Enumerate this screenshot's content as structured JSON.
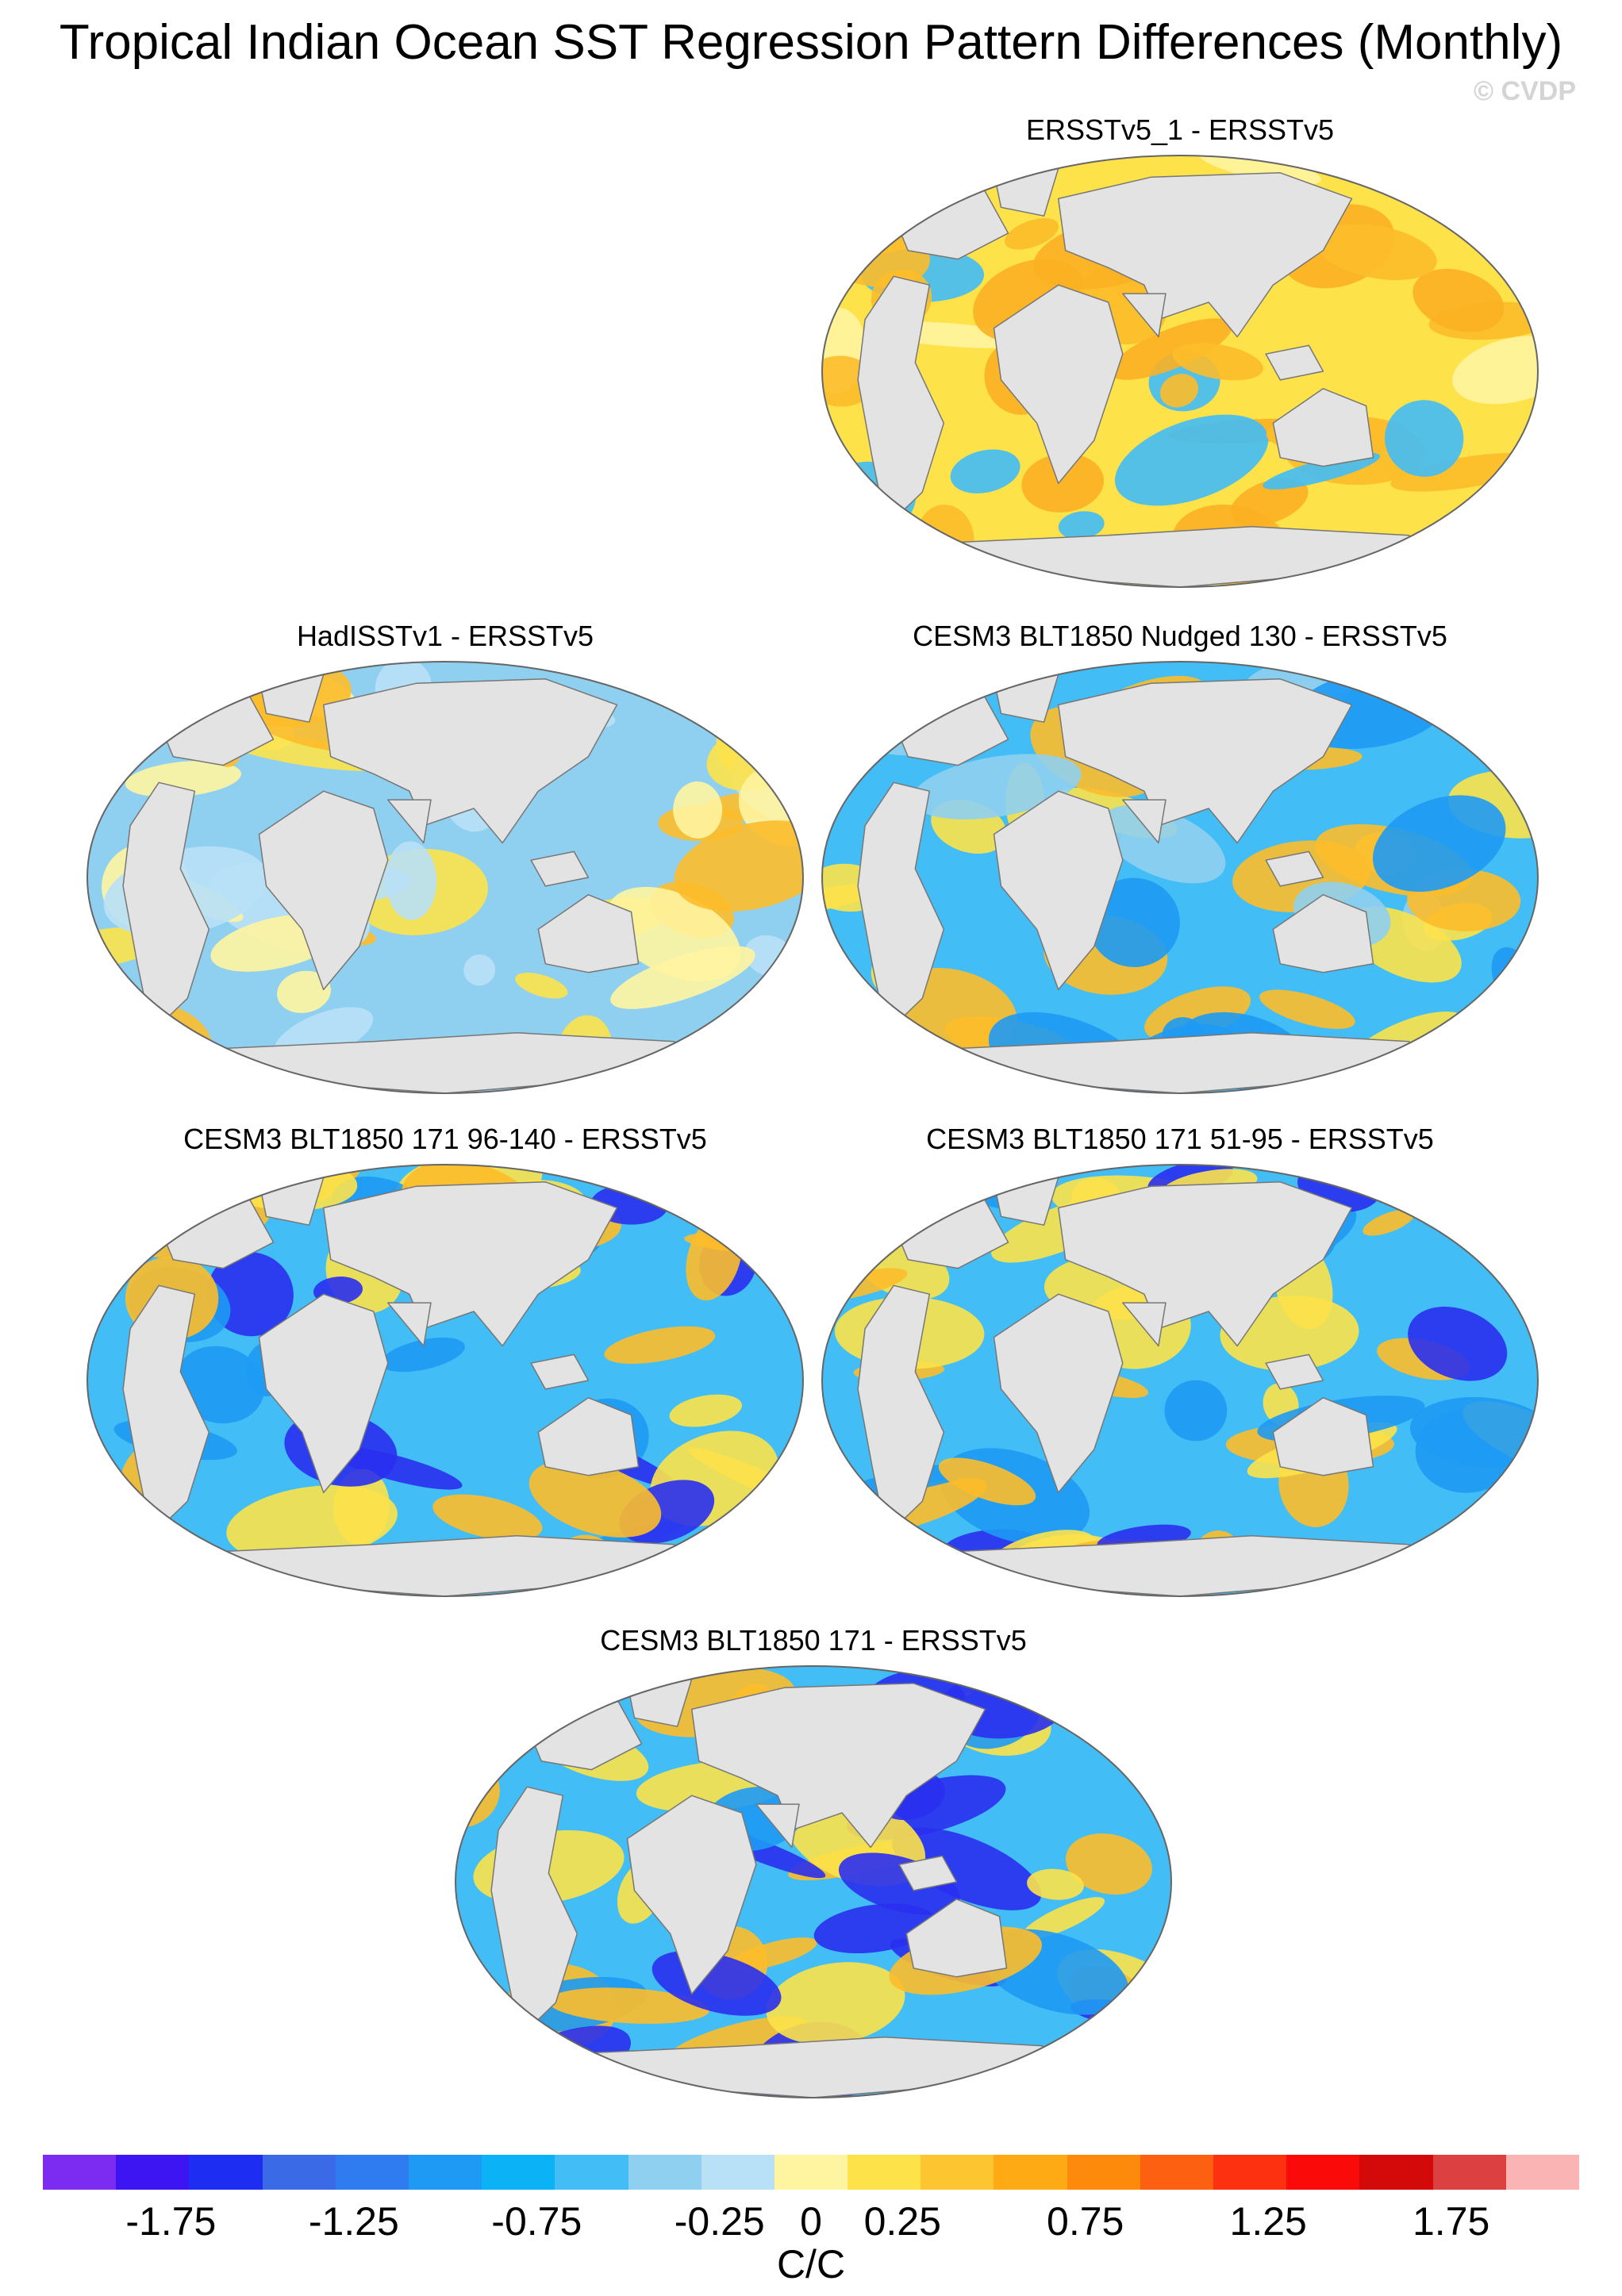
{
  "title": "Tropical Indian Ocean SST Regression Pattern Differences (Monthly)",
  "copyright": "© CVDP",
  "panels": [
    {
      "title": "ERSSTv5_1 - ERSSTv5",
      "palette": [
        "#fde24a",
        "#fdbc2a",
        "#fff4a0",
        "#42bdf6",
        "#fbb022"
      ]
    },
    {
      "title": "HadISSTv1 - ERSSTv5",
      "palette": [
        "#8fcff0",
        "#fde24a",
        "#fff4a0",
        "#fdbc2a",
        "#b8e0f6"
      ]
    },
    {
      "title": "CESM3 BLT1850 Nudged 130 - ERSSTv5",
      "palette": [
        "#42bdf6",
        "#1e9af4",
        "#8fcff0",
        "#fde24a",
        "#fdbc2a"
      ]
    },
    {
      "title": "CESM3 BLT1850 171 96-140 - ERSSTv5",
      "palette": [
        "#42bdf6",
        "#1e9af4",
        "#fde24a",
        "#fdbc2a",
        "#2a2ff0"
      ]
    },
    {
      "title": "CESM3 BLT1850 171 51-95 - ERSSTv5",
      "palette": [
        "#42bdf6",
        "#1e9af4",
        "#fdbc2a",
        "#fde24a",
        "#2a2ff0"
      ]
    },
    {
      "title": "CESM3 BLT1850 171 - ERSSTv5",
      "palette": [
        "#42bdf6",
        "#1e9af4",
        "#fdbc2a",
        "#fde24a",
        "#2a2ff0"
      ]
    }
  ],
  "colorbar": {
    "colors": [
      "#7b2cf0",
      "#3d14f2",
      "#1e2df2",
      "#3a6ae6",
      "#2f7cf0",
      "#1e9af4",
      "#0cb2f6",
      "#42bdf6",
      "#8fcff0",
      "#b8e0f6",
      "#fff4a0",
      "#fde24a",
      "#fdc630",
      "#fdaa14",
      "#fd8a0a",
      "#fd6010",
      "#fd3010",
      "#fb0a0a",
      "#d40a0a",
      "#dc4040",
      "#fbb4b4"
    ],
    "tick_labels": [
      "-1.75",
      "-1.25",
      "-0.75",
      "-0.25",
      "0",
      "0.25",
      "0.75",
      "1.25",
      "1.75"
    ],
    "tick_values": [
      -1.75,
      -1.25,
      -0.75,
      -0.25,
      0,
      0.25,
      0.75,
      1.25,
      1.75
    ],
    "range": [
      -2.1,
      2.1
    ],
    "units": "C/C"
  },
  "colors": {
    "land": "#e3e3e3",
    "coast": "#777777",
    "frame": "#666666"
  }
}
